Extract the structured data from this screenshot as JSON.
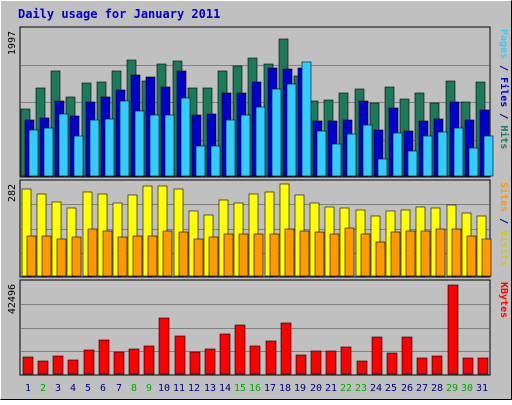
{
  "chart_data": {
    "type": "bar",
    "title": "Daily usage for January 2011",
    "categories": [
      "1",
      "2",
      "3",
      "4",
      "5",
      "6",
      "7",
      "8",
      "9",
      "10",
      "11",
      "12",
      "13",
      "14",
      "15",
      "16",
      "17",
      "18",
      "19",
      "20",
      "21",
      "22",
      "23",
      "24",
      "25",
      "26",
      "27",
      "28",
      "29",
      "30",
      "31"
    ],
    "weekend_days": [
      "2",
      "8",
      "9",
      "15",
      "16",
      "22",
      "23",
      "29",
      "30"
    ],
    "panels": [
      {
        "id": "hits",
        "max_label": "1997",
        "ymax": 1997,
        "series": [
          {
            "name": "Hits",
            "color": "#1c7a5a",
            "values": [
              930,
              1220,
              1460,
              1090,
              1290,
              1310,
              1450,
              1610,
              1320,
              1560,
              1600,
              1220,
              1220,
              1450,
              1520,
              1640,
              1550,
              1900,
              1390,
              1040,
              1060,
              1150,
              1200,
              1010,
              1230,
              1070,
              1150,
              1010,
              1320,
              1020,
              1310
            ]
          },
          {
            "name": "Files",
            "color": "#0000cc",
            "values": [
              780,
              800,
              1040,
              830,
              1020,
              1100,
              1190,
              1400,
              1370,
              1240,
              1450,
              850,
              860,
              1150,
              1150,
              1300,
              1500,
              1490,
              1500,
              760,
              760,
              770,
              1040,
              640,
              940,
              620,
              760,
              790,
              1020,
              770,
              920
            ]
          },
          {
            "name": "Pages",
            "color": "#33ccff",
            "values": [
              640,
              660,
              860,
              550,
              780,
              790,
              1040,
              900,
              840,
              840,
              1080,
              410,
              410,
              770,
              850,
              960,
              1200,
              1280,
              1580,
              620,
              450,
              580,
              710,
              230,
              600,
              340,
              550,
              610,
              660,
              390,
              560
            ]
          }
        ]
      },
      {
        "id": "visits",
        "max_label": "282",
        "ymax": 282,
        "series": [
          {
            "name": "Visits",
            "color": "#ffff00",
            "values": [
              270,
              255,
              230,
              210,
              260,
              255,
              225,
              250,
              280,
              280,
              270,
              200,
              190,
              235,
              225,
              255,
              260,
              285,
              250,
              225,
              215,
              210,
              205,
              185,
              200,
              205,
              215,
              210,
              220,
              195,
              185
            ]
          },
          {
            "name": "Sites",
            "color": "#ff9900",
            "values": [
              125,
              125,
              115,
              120,
              145,
              140,
              120,
              125,
              125,
              140,
              135,
              115,
              120,
              130,
              130,
              130,
              130,
              145,
              140,
              135,
              130,
              150,
              130,
              105,
              135,
              140,
              140,
              145,
              145,
              125,
              115
            ]
          }
        ]
      },
      {
        "id": "kbytes",
        "max_label": "42496",
        "ymax": 42496,
        "series": [
          {
            "name": "KBytes",
            "color": "#ff0000",
            "values": [
              7900,
              6000,
              8500,
              6800,
              11400,
              16200,
              10500,
              12000,
              13400,
              26800,
              18200,
              10300,
              11800,
              19300,
              23300,
              13300,
              15700,
              24300,
              9100,
              11200,
              11100,
              12800,
              6300,
              17800,
              9800,
              17700,
              7800,
              8800,
              42496,
              7800,
              7800
            ]
          }
        ]
      }
    ],
    "legend": [
      {
        "panel": "hits",
        "parts": [
          {
            "text": "Pages",
            "color": "#33ccff"
          },
          {
            "text": " / ",
            "color": "#000080"
          },
          {
            "text": "Files",
            "color": "#0000cc"
          },
          {
            "text": " / ",
            "color": "#000080"
          },
          {
            "text": "Hits",
            "color": "#1c7a5a"
          }
        ]
      },
      {
        "panel": "visits",
        "parts": [
          {
            "text": "Sites",
            "color": "#ff9900"
          },
          {
            "text": " / ",
            "color": "#000080"
          },
          {
            "text": "Visits",
            "color": "#cccc00"
          }
        ]
      },
      {
        "panel": "kbytes",
        "parts": [
          {
            "text": "KBytes",
            "color": "#ff0000"
          }
        ]
      }
    ],
    "weekday_label_color": "#000080",
    "weekend_label_color": "#00aa00",
    "title_color": "#0000cc",
    "background_color": "#c0c0c0",
    "grid": true
  }
}
